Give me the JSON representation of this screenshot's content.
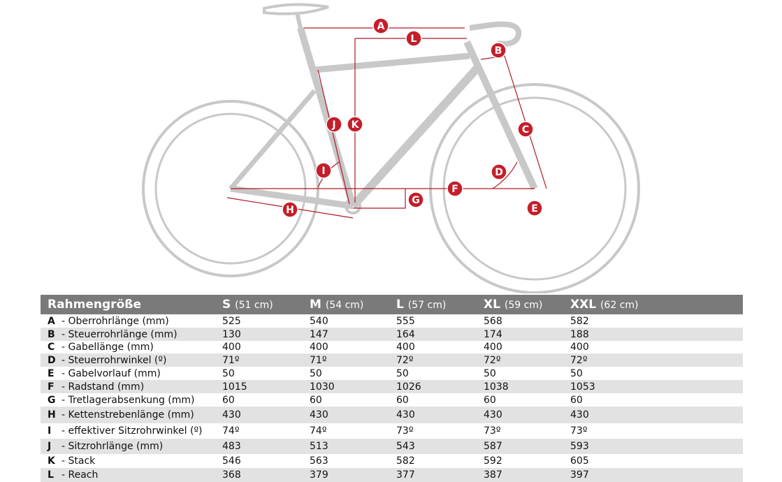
{
  "diagram": {
    "markers": [
      "A",
      "L",
      "B",
      "K",
      "J",
      "C",
      "I",
      "D",
      "F",
      "G",
      "E",
      "H"
    ]
  },
  "table": {
    "header": [
      [
        "Rahmengröße"
      ],
      [
        "S",
        "(51 cm)"
      ],
      [
        "M",
        "(54 cm)"
      ],
      [
        "L",
        "(57 cm)"
      ],
      [
        "XL",
        "(59 cm)"
      ],
      [
        "XXL",
        "(62 cm)"
      ]
    ],
    "rows": [
      [
        "A",
        "- Oberrohrlänge (mm)",
        525,
        540,
        555,
        568,
        582
      ],
      [
        "B",
        "- Steuerrohrlänge (mm)",
        130,
        147,
        164,
        174,
        188
      ],
      [
        "C",
        "- Gabellänge (mm)",
        400,
        400,
        400,
        400,
        400
      ],
      [
        "D",
        "- Steuerrohrwinkel (º)",
        "71º",
        "71º",
        "72º",
        "72º",
        "72º"
      ],
      [
        "E",
        "- Gabelvorlauf (mm)",
        50,
        50,
        50,
        50,
        50
      ],
      [
        "F",
        "- Radstand (mm)",
        1015,
        1030,
        1026,
        1038,
        1053
      ],
      [
        "G",
        "- Tretlagerabsenkung (mm)",
        60,
        60,
        60,
        60,
        60
      ],
      [
        "H",
        "- Kettenstrebenlänge (mm)",
        430,
        430,
        430,
        430,
        430
      ],
      [
        "I",
        "- effektiver Sitzrohrwinkel (º)",
        "74º",
        "74º",
        "73º",
        "73º",
        "73º"
      ],
      [
        "J",
        "- Sitzrohrlänge (mm)",
        483,
        513,
        543,
        587,
        593
      ],
      [
        "K",
        "- Stack",
        546,
        563,
        582,
        592,
        605
      ],
      [
        "L",
        "- Reach",
        368,
        379,
        377,
        387,
        397
      ]
    ]
  }
}
